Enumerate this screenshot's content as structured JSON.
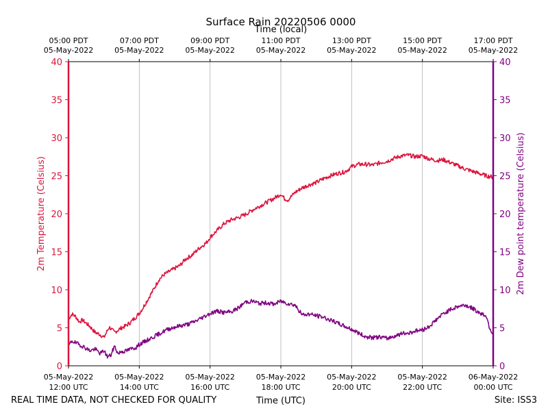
{
  "colors": {
    "temperature": "#dc143c",
    "dewpoint": "#800080",
    "grid": "#b0b0b0",
    "axis": "#000000"
  },
  "chart_data": {
    "type": "line",
    "title": "Surface Rain 20220506 0000",
    "xlabel": "Time (UTC)",
    "top_xlabel": "Time (local)",
    "ylabel_left": "2m Temperature (Celsius)",
    "ylabel_right": "2m Dew point temperature (Celsius)",
    "xlim_hours_utc": [
      12,
      24
    ],
    "ylim": [
      0,
      40
    ],
    "y_ticks": [
      0,
      5,
      10,
      15,
      20,
      25,
      30,
      35,
      40
    ],
    "grid": "vertical",
    "x_ticks_bottom": [
      {
        "hour": 12,
        "line1": "05-May-2022",
        "line2": "12:00 UTC"
      },
      {
        "hour": 14,
        "line1": "05-May-2022",
        "line2": "14:00 UTC"
      },
      {
        "hour": 16,
        "line1": "05-May-2022",
        "line2": "16:00 UTC"
      },
      {
        "hour": 18,
        "line1": "05-May-2022",
        "line2": "18:00 UTC"
      },
      {
        "hour": 20,
        "line1": "05-May-2022",
        "line2": "20:00 UTC"
      },
      {
        "hour": 22,
        "line1": "05-May-2022",
        "line2": "22:00 UTC"
      },
      {
        "hour": 24,
        "line1": "06-May-2022",
        "line2": "00:00 UTC"
      }
    ],
    "x_ticks_top": [
      {
        "hour": 12,
        "line1": "05:00 PDT",
        "line2": "05-May-2022"
      },
      {
        "hour": 14,
        "line1": "07:00 PDT",
        "line2": "05-May-2022"
      },
      {
        "hour": 16,
        "line1": "09:00 PDT",
        "line2": "05-May-2022"
      },
      {
        "hour": 18,
        "line1": "11:00 PDT",
        "line2": "05-May-2022"
      },
      {
        "hour": 20,
        "line1": "13:00 PDT",
        "line2": "05-May-2022"
      },
      {
        "hour": 22,
        "line1": "15:00 PDT",
        "line2": "05-May-2022"
      },
      {
        "hour": 24,
        "line1": "17:00 PDT",
        "line2": "05-May-2022"
      }
    ],
    "series": [
      {
        "name": "2m Temperature",
        "axis": "left",
        "hours": [
          12.0,
          12.1,
          12.2,
          12.3,
          12.4,
          12.5,
          12.6,
          12.75,
          12.9,
          13.0,
          13.15,
          13.3,
          13.4,
          13.5,
          13.6,
          13.75,
          13.9,
          14.0,
          14.1,
          14.25,
          14.4,
          14.55,
          14.7,
          14.85,
          15.0,
          15.15,
          15.3,
          15.5,
          15.7,
          15.9,
          16.0,
          16.2,
          16.4,
          16.6,
          16.8,
          17.0,
          17.2,
          17.4,
          17.6,
          17.8,
          18.0,
          18.1,
          18.2,
          18.4,
          18.6,
          18.8,
          19.0,
          19.2,
          19.4,
          19.6,
          19.8,
          19.9,
          20.0,
          20.2,
          20.4,
          20.6,
          20.8,
          21.0,
          21.2,
          21.4,
          21.6,
          21.8,
          22.0,
          22.2,
          22.4,
          22.6,
          22.8,
          23.0,
          23.2,
          23.4,
          23.6,
          23.8,
          24.0
        ],
        "values": [
          6.2,
          6.8,
          6.5,
          5.8,
          6.0,
          5.6,
          5.2,
          4.4,
          4.1,
          3.7,
          5.1,
          4.4,
          4.7,
          5.0,
          5.2,
          5.7,
          6.4,
          6.9,
          7.6,
          8.8,
          10.0,
          11.3,
          12.0,
          12.4,
          12.8,
          13.2,
          14.0,
          14.6,
          15.5,
          16.2,
          16.9,
          17.8,
          18.7,
          19.2,
          19.5,
          19.9,
          20.5,
          21.0,
          21.5,
          22.0,
          22.6,
          22.0,
          21.8,
          22.8,
          23.4,
          23.8,
          24.1,
          24.6,
          25.0,
          25.3,
          25.5,
          25.8,
          26.2,
          26.5,
          26.5,
          26.4,
          26.7,
          26.9,
          27.3,
          27.6,
          27.7,
          27.5,
          27.6,
          27.2,
          27.0,
          27.1,
          26.7,
          26.3,
          25.9,
          25.6,
          25.3,
          25.0,
          24.8
        ]
      },
      {
        "name": "2m Dew point temperature",
        "axis": "right",
        "hours": [
          12.0,
          12.1,
          12.2,
          12.35,
          12.5,
          12.6,
          12.75,
          12.9,
          13.0,
          13.1,
          13.2,
          13.3,
          13.4,
          13.5,
          13.6,
          13.75,
          13.9,
          14.0,
          14.2,
          14.4,
          14.6,
          14.8,
          15.0,
          15.2,
          15.4,
          15.6,
          15.8,
          16.0,
          16.2,
          16.4,
          16.6,
          16.8,
          17.0,
          17.2,
          17.4,
          17.6,
          17.8,
          18.0,
          18.2,
          18.4,
          18.6,
          18.8,
          19.0,
          19.2,
          19.4,
          19.6,
          19.8,
          20.0,
          20.2,
          20.4,
          20.6,
          20.8,
          21.0,
          21.2,
          21.4,
          21.6,
          21.8,
          22.0,
          22.2,
          22.4,
          22.6,
          22.8,
          23.0,
          23.2,
          23.4,
          23.6,
          23.8,
          23.9,
          24.0
        ],
        "values": [
          2.6,
          3.3,
          3.0,
          2.7,
          2.3,
          2.0,
          2.2,
          1.6,
          2.0,
          1.2,
          1.4,
          2.6,
          1.6,
          1.9,
          1.9,
          2.2,
          2.4,
          2.8,
          3.3,
          3.8,
          4.3,
          4.8,
          5.1,
          5.3,
          5.5,
          5.9,
          6.4,
          6.9,
          7.2,
          7.0,
          7.1,
          7.6,
          8.4,
          8.5,
          8.2,
          8.3,
          8.1,
          8.5,
          8.2,
          8.0,
          6.7,
          6.8,
          6.6,
          6.4,
          6.0,
          5.6,
          5.2,
          4.8,
          4.3,
          3.8,
          3.7,
          3.8,
          3.6,
          3.9,
          4.2,
          4.3,
          4.6,
          4.7,
          5.2,
          6.1,
          6.9,
          7.4,
          7.8,
          8.0,
          7.6,
          7.0,
          6.6,
          5.0,
          4.1
        ]
      }
    ]
  },
  "footer": {
    "disclaimer": "REAL TIME DATA, NOT CHECKED FOR QUALITY",
    "site": "Site: ISS3"
  }
}
